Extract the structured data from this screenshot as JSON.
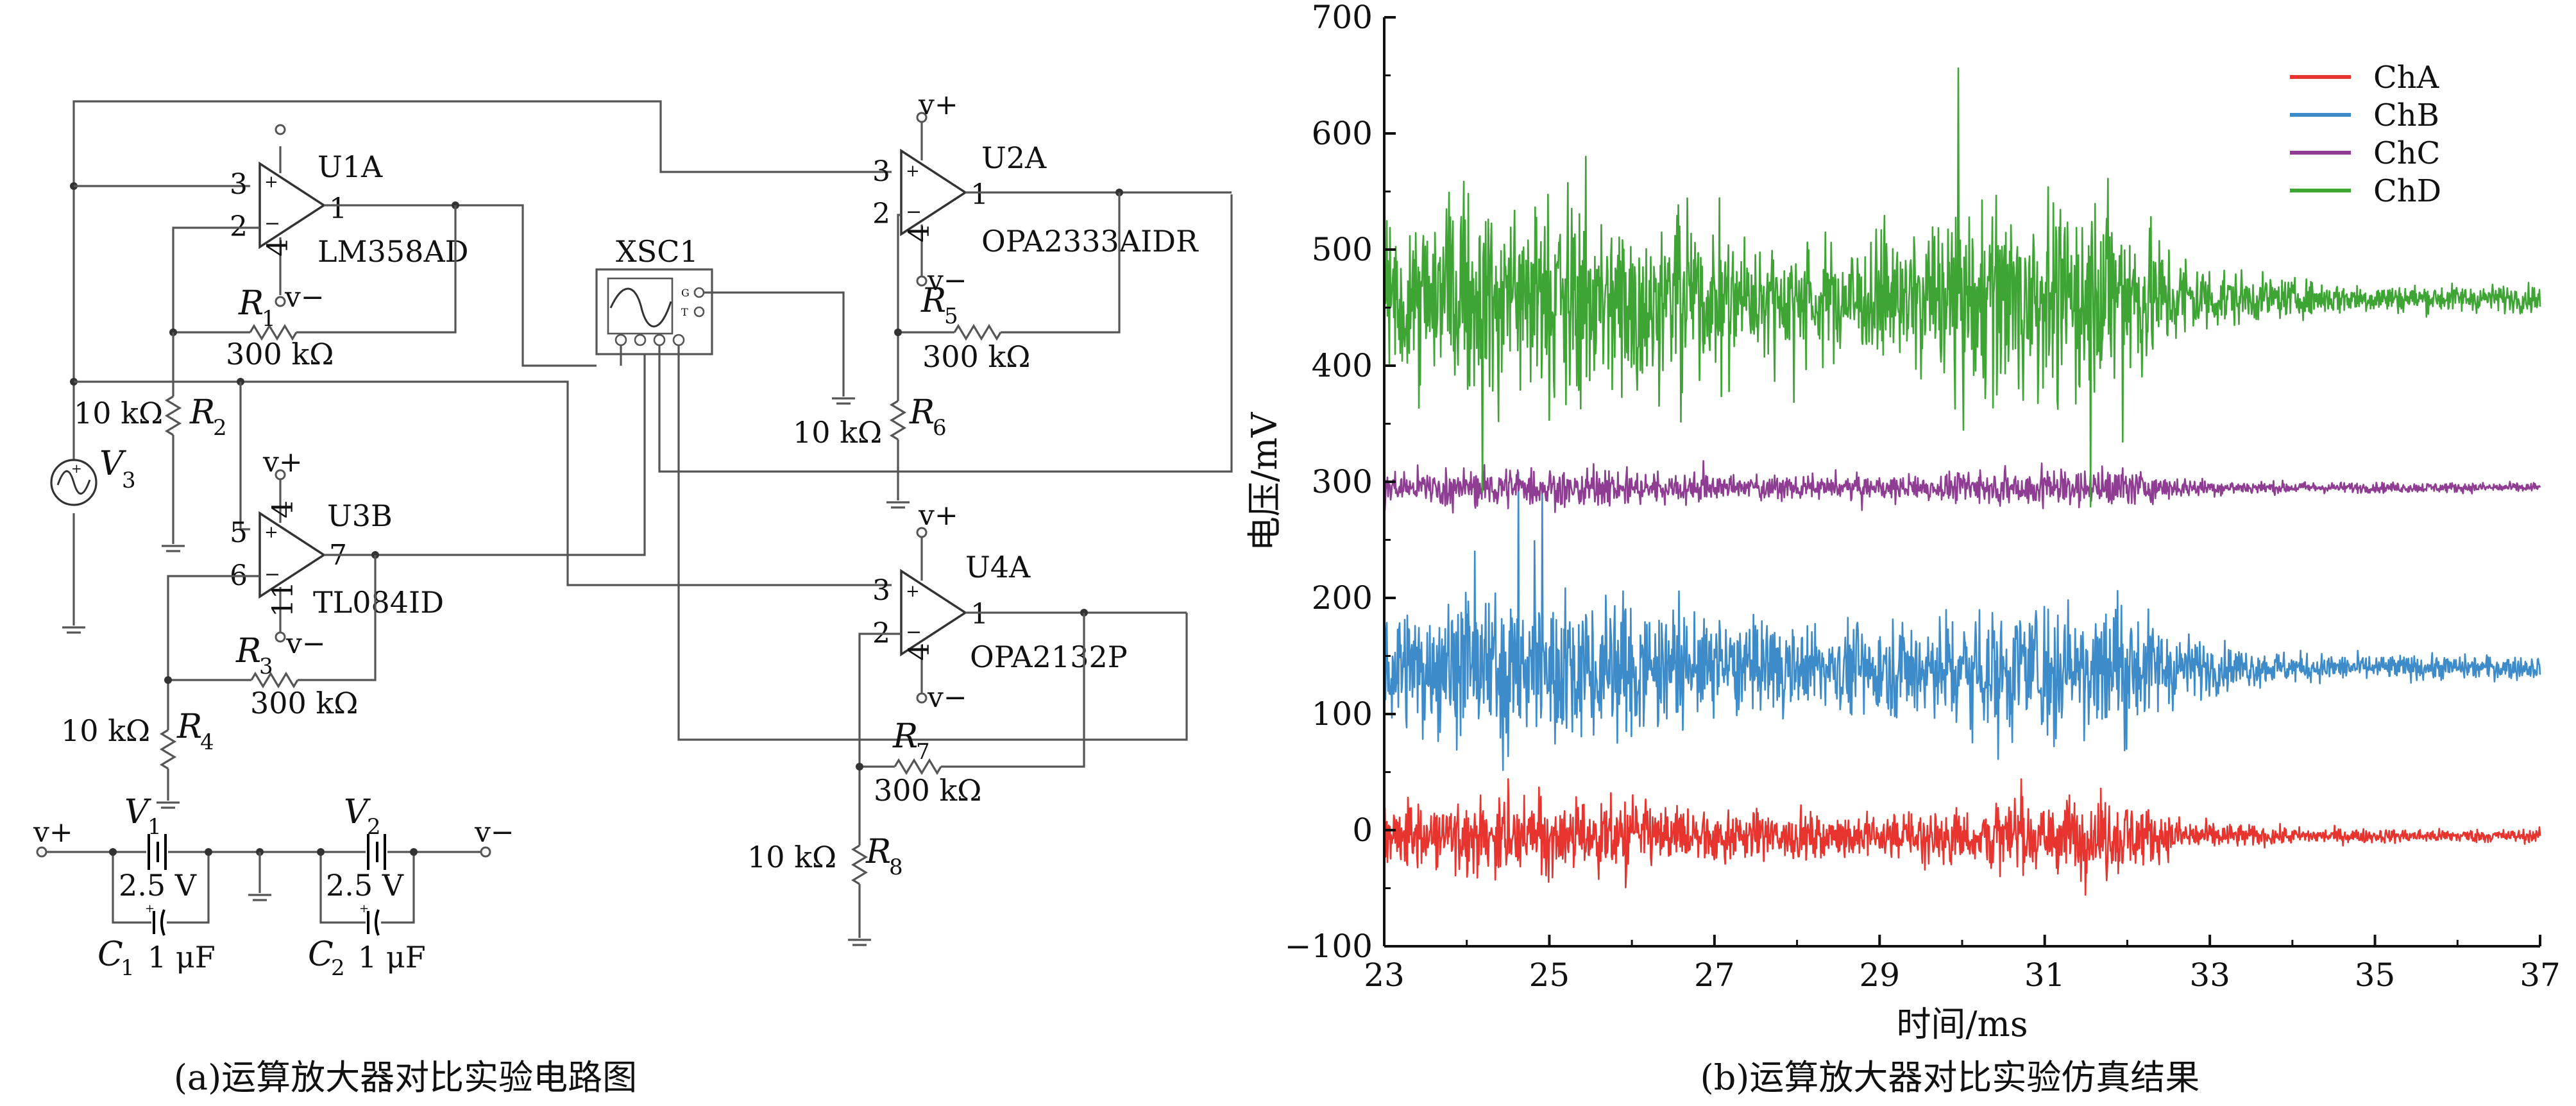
{
  "circuit": {
    "opamps": [
      {
        "ref": "U1A",
        "model": "LM358AD",
        "pin_in_pos": "3",
        "pin_in_neg": "2",
        "pin_out": "1",
        "pin_vneg": "4"
      },
      {
        "ref": "U2A",
        "model": "OPA2333AIDR",
        "pin_in_pos": "3",
        "pin_in_neg": "2",
        "pin_out": "1",
        "pin_vneg": "4"
      },
      {
        "ref": "U3B",
        "model": "TL084ID",
        "pin_in_pos": "5",
        "pin_in_neg": "6",
        "pin_out": "7",
        "pin_vpos": "4",
        "pin_vneg": "11"
      },
      {
        "ref": "U4A",
        "model": "OPA2132P",
        "pin_in_pos": "3",
        "pin_in_neg": "2",
        "pin_out": "1",
        "pin_vneg": "4"
      }
    ],
    "supplies": {
      "vpos": "v+",
      "vneg": "v−"
    },
    "resistors": [
      {
        "ref": "R",
        "sub": "1",
        "value": "300 kΩ"
      },
      {
        "ref": "R",
        "sub": "2",
        "value": "10 kΩ"
      },
      {
        "ref": "R",
        "sub": "3",
        "value": "300 kΩ"
      },
      {
        "ref": "R",
        "sub": "4",
        "value": "10 kΩ"
      },
      {
        "ref": "R",
        "sub": "5",
        "value": "300 kΩ"
      },
      {
        "ref": "R",
        "sub": "6",
        "value": "10 kΩ"
      },
      {
        "ref": "R",
        "sub": "7",
        "value": "300 kΩ"
      },
      {
        "ref": "R",
        "sub": "8",
        "value": "10 kΩ"
      }
    ],
    "source": {
      "ref": "V",
      "sub": "3"
    },
    "batteries": [
      {
        "ref": "V",
        "sub": "1",
        "value": "2.5 V"
      },
      {
        "ref": "V",
        "sub": "2",
        "value": "2.5 V"
      }
    ],
    "capacitors": [
      {
        "ref": "C",
        "sub": "1",
        "value": "1 μF"
      },
      {
        "ref": "C",
        "sub": "2",
        "value": "1 μF"
      }
    ],
    "scope": {
      "ref": "XSC1",
      "pin_g": "G",
      "pin_t": "T"
    },
    "caption": "(a)运算放大器对比实验电路图"
  },
  "chart_data": {
    "type": "line",
    "xlabel": "时间/ms",
    "ylabel": "电压/mV",
    "xlim": [
      23,
      37
    ],
    "ylim": [
      -100,
      700
    ],
    "xticks": [
      23,
      25,
      27,
      29,
      31,
      33,
      35,
      37
    ],
    "yticks": [
      -100,
      0,
      100,
      200,
      300,
      400,
      500,
      600,
      700
    ],
    "legend_position": "top-right",
    "grid": false,
    "series": [
      {
        "name": "ChA",
        "color": "#e8342e",
        "baseline": -5,
        "peak_amplitude": 50,
        "settled_amplitude": 4
      },
      {
        "name": "ChB",
        "color": "#3d8bc9",
        "baseline": 140,
        "peak_amplitude": 95,
        "settled_amplitude": 7
      },
      {
        "name": "ChC",
        "color": "#8e3d93",
        "baseline": 295,
        "peak_amplitude": 25,
        "settled_amplitude": 3
      },
      {
        "name": "ChD",
        "color": "#3ea535",
        "baseline": 458,
        "peak_amplitude": 135,
        "settled_amplitude": 8
      }
    ],
    "decay_time": 32,
    "caption": "(b)运算放大器对比实验仿真结果"
  }
}
